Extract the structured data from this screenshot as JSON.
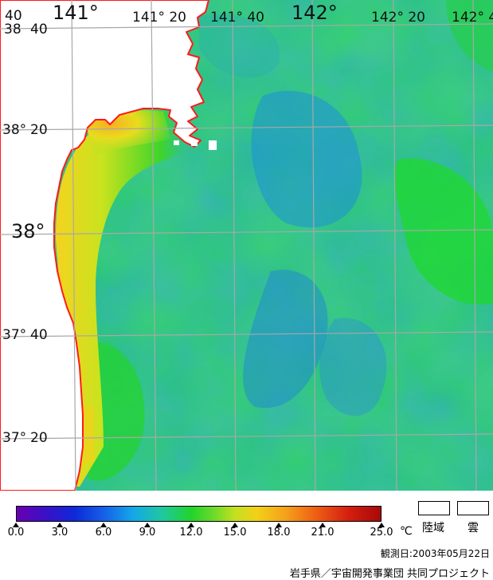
{
  "map": {
    "lat_labels": [
      {
        "id": "lat-3840",
        "deg": "38",
        "deg_prefix": "40",
        "min": "40"
      },
      {
        "id": "lat-3820",
        "deg": "38°",
        "min": "20"
      },
      {
        "id": "lat-38",
        "deg": "38°",
        "min": ""
      },
      {
        "id": "lat-3740",
        "deg": "37°",
        "min": "40"
      },
      {
        "id": "lat-3720",
        "deg": "37°",
        "min": "20"
      }
    ],
    "lon_labels": [
      {
        "id": "lon-141",
        "text": "141°"
      },
      {
        "id": "lon-14120",
        "text": "141°  20"
      },
      {
        "id": "lon-14140",
        "text": "141°  40"
      },
      {
        "id": "lon-142",
        "text": "142°"
      },
      {
        "id": "lon-14220",
        "text": "142°  20"
      },
      {
        "id": "lon-14240",
        "text": "142°  4"
      }
    ],
    "colors": {
      "coast": "#ff1a1a",
      "land": "#ffffff",
      "grid": "#a8a8a8"
    }
  },
  "legend": {
    "ticks": [
      "0.0",
      "3.0",
      "6.0",
      "9.0",
      "12.0",
      "15.0",
      "18.0",
      "21.0",
      "25.0"
    ],
    "unit": "℃",
    "land_label": "陸域",
    "cloud_label": "雲"
  },
  "observation": "観測日:2003年05月22日",
  "credit": "岩手県／宇宙開発事業団 共同プロジェクト"
}
